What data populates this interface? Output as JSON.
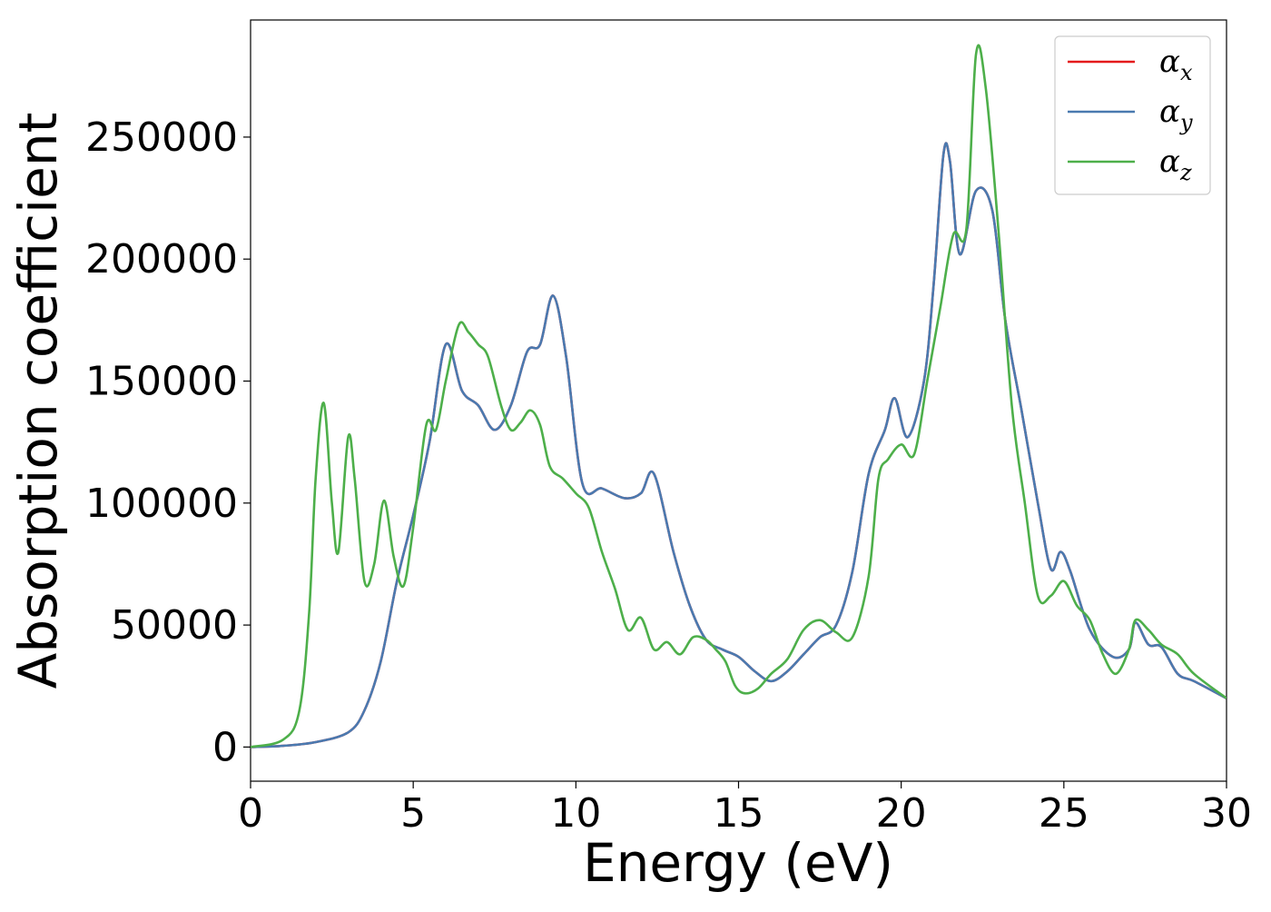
{
  "chart_data": {
    "type": "line",
    "xlabel": "Energy (eV)",
    "ylabel": "Absorption coefficient",
    "xlim": [
      0,
      30
    ],
    "ylim": [
      -14000,
      298000
    ],
    "xticks": [
      0,
      5,
      10,
      15,
      20,
      25,
      30
    ],
    "yticks": [
      0,
      50000,
      100000,
      150000,
      200000,
      250000
    ],
    "grid": false,
    "legend_position": "top-right",
    "series": [
      {
        "name": "αx",
        "symbol": "α",
        "subscript": "x",
        "color": "#e41a1c",
        "x": [
          0,
          1,
          2,
          3,
          3.5,
          4,
          4.5,
          5,
          5.5,
          6,
          6.5,
          7,
          7.5,
          8,
          8.5,
          8.9,
          9.3,
          9.7,
          10.2,
          10.8,
          11.5,
          12,
          12.4,
          13,
          13.5,
          14,
          14.5,
          15,
          15.5,
          16,
          16.5,
          17,
          17.5,
          18,
          18.5,
          19,
          19.5,
          19.8,
          20.2,
          20.7,
          21,
          21.3,
          21.5,
          21.8,
          22.3,
          22.8,
          23.2,
          23.7,
          24.2,
          24.6,
          24.9,
          25.2,
          25.8,
          26.5,
          27,
          27.2,
          27.6,
          28,
          28.5,
          29,
          30
        ],
        "y": [
          0,
          500,
          2000,
          6000,
          15000,
          35000,
          68000,
          95000,
          125000,
          165000,
          146000,
          140000,
          130000,
          140000,
          162000,
          165000,
          185000,
          160000,
          108000,
          106000,
          102000,
          104000,
          112000,
          80000,
          58000,
          44000,
          40000,
          37000,
          31000,
          27000,
          31000,
          38000,
          45000,
          50000,
          72000,
          112000,
          130000,
          143000,
          127000,
          150000,
          190000,
          243000,
          240000,
          202000,
          228000,
          220000,
          175000,
          138000,
          100000,
          73000,
          80000,
          72000,
          48000,
          37000,
          40000,
          51000,
          42000,
          41000,
          30000,
          27000,
          20000
        ]
      },
      {
        "name": "αy",
        "symbol": "α",
        "subscript": "y",
        "color": "#4a7ab0",
        "x": [
          0,
          1,
          2,
          3,
          3.5,
          4,
          4.5,
          5,
          5.5,
          6,
          6.5,
          7,
          7.5,
          8,
          8.5,
          8.9,
          9.3,
          9.7,
          10.2,
          10.8,
          11.5,
          12,
          12.4,
          13,
          13.5,
          14,
          14.5,
          15,
          15.5,
          16,
          16.5,
          17,
          17.5,
          18,
          18.5,
          19,
          19.5,
          19.8,
          20.2,
          20.7,
          21,
          21.3,
          21.5,
          21.8,
          22.3,
          22.8,
          23.2,
          23.7,
          24.2,
          24.6,
          24.9,
          25.2,
          25.8,
          26.5,
          27,
          27.2,
          27.6,
          28,
          28.5,
          29,
          30
        ],
        "y": [
          0,
          500,
          2000,
          6000,
          15000,
          35000,
          68000,
          95000,
          125000,
          165000,
          146000,
          140000,
          130000,
          140000,
          162000,
          165000,
          185000,
          160000,
          108000,
          106000,
          102000,
          104000,
          112000,
          80000,
          58000,
          44000,
          40000,
          37000,
          31000,
          27000,
          31000,
          38000,
          45000,
          50000,
          72000,
          112000,
          130000,
          143000,
          127000,
          150000,
          190000,
          243000,
          240000,
          202000,
          228000,
          220000,
          175000,
          138000,
          100000,
          73000,
          80000,
          72000,
          48000,
          37000,
          40000,
          51000,
          42000,
          41000,
          30000,
          27000,
          20000
        ]
      },
      {
        "name": "αz",
        "symbol": "α",
        "subscript": "z",
        "color": "#4daf4a",
        "x": [
          0,
          1,
          1.5,
          1.8,
          2,
          2.25,
          2.5,
          2.7,
          3,
          3.2,
          3.5,
          3.8,
          4.1,
          4.4,
          4.7,
          5,
          5.4,
          5.7,
          6,
          6.4,
          6.7,
          7,
          7.3,
          7.7,
          8,
          8.3,
          8.6,
          8.9,
          9.2,
          9.6,
          10,
          10.4,
          10.8,
          11.2,
          11.6,
          12,
          12.4,
          12.8,
          13.2,
          13.6,
          14,
          14.3,
          14.6,
          14.9,
          15.2,
          15.6,
          16,
          16.5,
          17,
          17.5,
          18,
          18.5,
          19,
          19.3,
          19.6,
          20,
          20.4,
          20.8,
          21.2,
          21.6,
          22,
          22.3,
          22.6,
          23,
          23.4,
          23.8,
          24.2,
          24.6,
          25,
          25.4,
          25.8,
          26.2,
          26.6,
          27,
          27.2,
          27.6,
          28,
          28.5,
          29,
          30
        ],
        "y": [
          0,
          3000,
          15000,
          55000,
          110000,
          141000,
          100000,
          80000,
          127000,
          110000,
          68000,
          75000,
          101000,
          78000,
          66000,
          90000,
          132000,
          130000,
          150000,
          173000,
          170000,
          165000,
          160000,
          140000,
          130000,
          133000,
          138000,
          132000,
          115000,
          110000,
          104000,
          98000,
          80000,
          65000,
          48000,
          53000,
          40000,
          43000,
          38000,
          45000,
          44000,
          40000,
          35000,
          25000,
          22000,
          24000,
          30000,
          36000,
          48000,
          52000,
          47000,
          45000,
          70000,
          110000,
          118000,
          124000,
          120000,
          150000,
          180000,
          210000,
          212000,
          284000,
          270000,
          210000,
          140000,
          100000,
          62000,
          62000,
          68000,
          58000,
          52000,
          38000,
          30000,
          40000,
          52000,
          48000,
          42000,
          38000,
          30000,
          20000
        ]
      }
    ]
  }
}
